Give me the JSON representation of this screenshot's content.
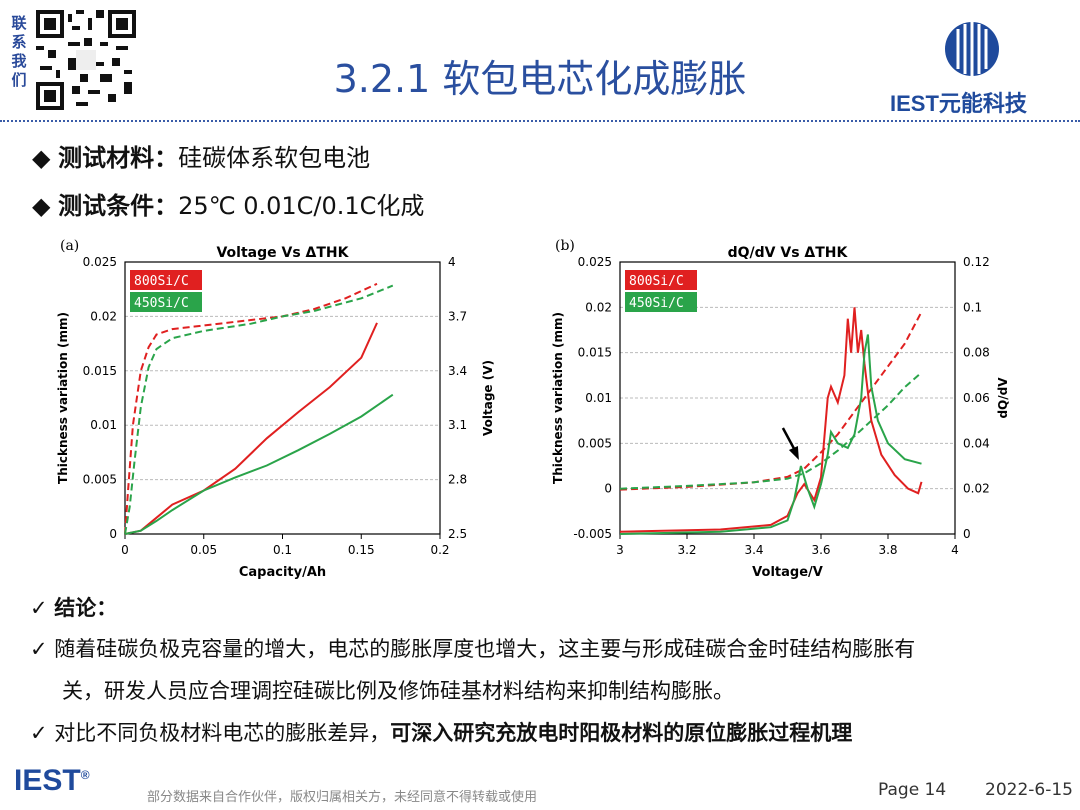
{
  "header": {
    "contact": "联系我们",
    "title": "3.2.1 软包电芯化成膨胀",
    "brand": "IEST元能科技"
  },
  "bullets": [
    {
      "label": "测试材料",
      "value": "硅碳体系软包电池"
    },
    {
      "label": "测试条件",
      "value": "25℃ 0.01C/0.1C化成"
    }
  ],
  "colors": {
    "red": "#e02020",
    "green": "#2aa44a",
    "title_blue": "#2a4f9f"
  },
  "chart_data": [
    {
      "panel": "(a)",
      "type": "line",
      "title": "Voltage Vs ΔTHK",
      "xlabel": "Capacity/Ah",
      "ylabel": "Thickness variation (mm)",
      "y2label": "Voltage (V)",
      "xlim": [
        0,
        0.2
      ],
      "ylim": [
        0,
        0.025
      ],
      "y2lim": [
        2.5,
        4
      ],
      "xticks": [
        "0",
        "0.05",
        "0.1",
        "0.15",
        "0.2"
      ],
      "yticks": [
        "0",
        "0.005",
        "0.01",
        "0.015",
        "0.02",
        "0.025"
      ],
      "y2ticks": [
        "2.5",
        "2.8",
        "3.1",
        "3.4",
        "3.7",
        "4"
      ],
      "legend": [
        "800Si/C",
        "450Si/C"
      ],
      "grid": true,
      "series": [
        {
          "name": "800Si/C",
          "axis": "y2",
          "style": "dashed",
          "color": "#e02020",
          "x": [
            0,
            0.002,
            0.005,
            0.01,
            0.015,
            0.02,
            0.03,
            0.05,
            0.08,
            0.1,
            0.12,
            0.14,
            0.16
          ],
          "y": [
            2.5,
            2.75,
            3.1,
            3.4,
            3.53,
            3.6,
            3.63,
            3.65,
            3.68,
            3.7,
            3.74,
            3.8,
            3.88
          ]
        },
        {
          "name": "450Si/C",
          "axis": "y2",
          "style": "dashed",
          "color": "#2aa44a",
          "x": [
            0,
            0.003,
            0.006,
            0.01,
            0.015,
            0.02,
            0.03,
            0.05,
            0.08,
            0.1,
            0.12,
            0.15,
            0.17
          ],
          "y": [
            2.5,
            2.65,
            2.9,
            3.2,
            3.42,
            3.52,
            3.58,
            3.62,
            3.66,
            3.7,
            3.73,
            3.8,
            3.87
          ]
        },
        {
          "name": "800Si/C",
          "axis": "y",
          "style": "solid",
          "color": "#e02020",
          "x": [
            0,
            0.01,
            0.02,
            0.03,
            0.05,
            0.07,
            0.09,
            0.11,
            0.13,
            0.15,
            0.16
          ],
          "y": [
            0,
            0.0003,
            0.0015,
            0.0027,
            0.004,
            0.006,
            0.0088,
            0.0112,
            0.0135,
            0.0162,
            0.0194
          ]
        },
        {
          "name": "450Si/C",
          "axis": "y",
          "style": "solid",
          "color": "#2aa44a",
          "x": [
            0,
            0.01,
            0.02,
            0.03,
            0.05,
            0.07,
            0.09,
            0.11,
            0.13,
            0.15,
            0.17
          ],
          "y": [
            0,
            0.0003,
            0.0012,
            0.0022,
            0.004,
            0.0052,
            0.0063,
            0.0077,
            0.0092,
            0.0108,
            0.0128
          ]
        }
      ]
    },
    {
      "panel": "(b)",
      "type": "line",
      "title": "dQ/dV Vs ΔTHK",
      "xlabel": "Voltage/V",
      "ylabel": "Thickness variation (mm)",
      "y2label": "dQ/dV",
      "xlim": [
        3,
        4
      ],
      "ylim": [
        -0.005,
        0.025
      ],
      "y2lim": [
        0,
        0.12
      ],
      "xticks": [
        "3",
        "3.2",
        "3.4",
        "3.6",
        "3.8",
        "4"
      ],
      "yticks": [
        "-0.005",
        "0",
        "0.005",
        "0.01",
        "0.015",
        "0.02",
        "0.025"
      ],
      "y2ticks": [
        "0",
        "0.02",
        "0.04",
        "0.06",
        "0.08",
        "0.1",
        "0.12"
      ],
      "legend": [
        "800Si/C",
        "450Si/C"
      ],
      "grid": true,
      "series": [
        {
          "name": "800Si/C",
          "axis": "y",
          "style": "dashed",
          "color": "#e02020",
          "x": [
            3.0,
            3.2,
            3.4,
            3.5,
            3.55,
            3.6,
            3.65,
            3.7,
            3.75,
            3.8,
            3.85,
            3.9
          ],
          "y": [
            -0.0001,
            0.0002,
            0.0007,
            0.0013,
            0.0022,
            0.004,
            0.006,
            0.0085,
            0.011,
            0.0135,
            0.016,
            0.0195
          ]
        },
        {
          "name": "450Si/C",
          "axis": "y",
          "style": "dashed",
          "color": "#2aa44a",
          "x": [
            3.0,
            3.2,
            3.4,
            3.5,
            3.55,
            3.6,
            3.65,
            3.7,
            3.75,
            3.8,
            3.85,
            3.9
          ],
          "y": [
            0,
            0.0003,
            0.0007,
            0.0011,
            0.0017,
            0.0028,
            0.0042,
            0.0058,
            0.0075,
            0.0092,
            0.0112,
            0.0128
          ]
        },
        {
          "name": "800Si/C",
          "axis": "y2",
          "style": "solid",
          "color": "#e02020",
          "x": [
            3.0,
            3.3,
            3.45,
            3.5,
            3.53,
            3.55,
            3.58,
            3.6,
            3.62,
            3.63,
            3.65,
            3.67,
            3.68,
            3.69,
            3.7,
            3.71,
            3.72,
            3.73,
            3.75,
            3.78,
            3.82,
            3.86,
            3.89,
            3.9
          ],
          "y": [
            0.001,
            0.002,
            0.004,
            0.008,
            0.018,
            0.022,
            0.015,
            0.025,
            0.06,
            0.065,
            0.058,
            0.07,
            0.095,
            0.08,
            0.1,
            0.08,
            0.09,
            0.075,
            0.05,
            0.035,
            0.026,
            0.02,
            0.018,
            0.023
          ]
        },
        {
          "name": "450Si/C",
          "axis": "y2",
          "style": "solid",
          "color": "#2aa44a",
          "x": [
            3.0,
            3.3,
            3.45,
            3.5,
            3.52,
            3.54,
            3.56,
            3.58,
            3.6,
            3.62,
            3.63,
            3.65,
            3.68,
            3.7,
            3.72,
            3.73,
            3.74,
            3.75,
            3.77,
            3.8,
            3.85,
            3.9
          ],
          "y": [
            0.0,
            0.001,
            0.003,
            0.006,
            0.015,
            0.03,
            0.02,
            0.012,
            0.022,
            0.035,
            0.045,
            0.04,
            0.038,
            0.044,
            0.06,
            0.08,
            0.088,
            0.065,
            0.05,
            0.04,
            0.033,
            0.031
          ]
        }
      ],
      "annotations": [
        "arrow pointing to 450Si/C peak near 3.54 V"
      ]
    }
  ],
  "conclusion": {
    "heading": "结论：",
    "line1": "随着硅碳负极克容量的增大，电芯的膨胀厚度也增大，这主要与形成硅碳合金时硅结构膨胀有",
    "line2": "关，研发人员应合理调控硅碳比例及修饰硅基材料结构来抑制结构膨胀。",
    "line3_plain": "对比不同负极材料电芯的膨胀差异，",
    "line3_bold": "可深入研究充放电时阳极材料的原位膨胀过程机理"
  },
  "footer": {
    "brand": "IEST",
    "reg": "®",
    "note": "部分数据来自合作伙伴，版权归属相关方，未经同意不得转载或使用",
    "page": "Page 14",
    "date": "2022-6-15"
  }
}
